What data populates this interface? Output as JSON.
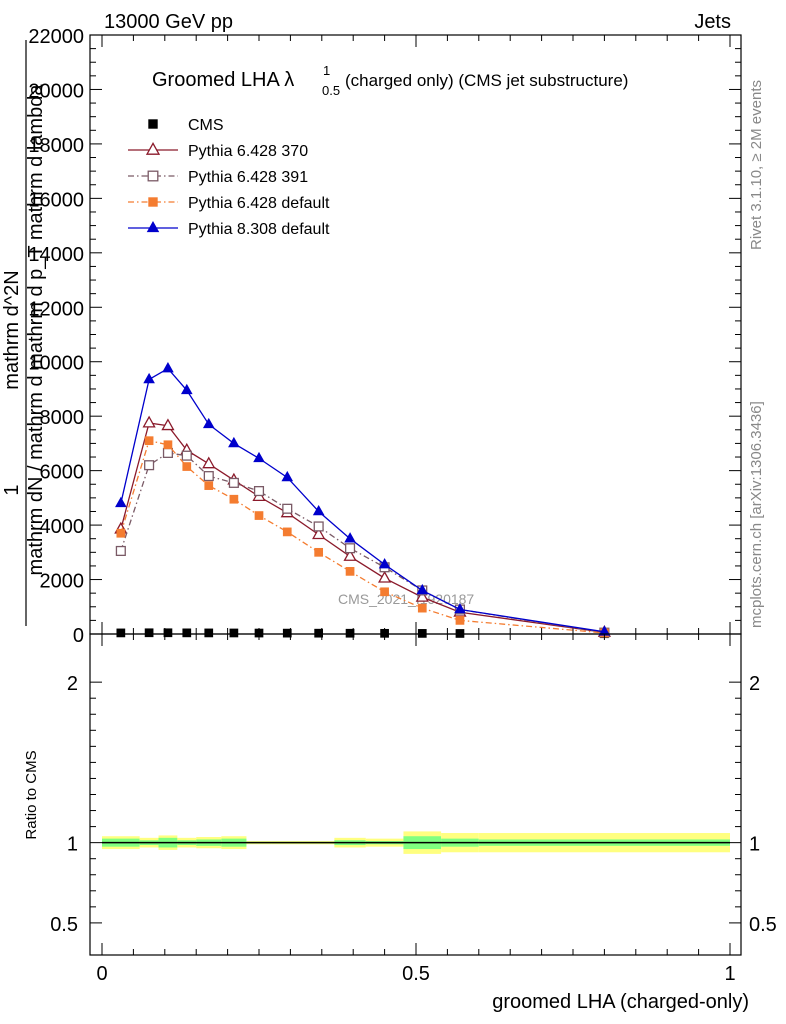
{
  "header": {
    "left": "13000 GeV pp",
    "right": "Jets"
  },
  "side_labels": {
    "rivet": "Rivet 3.1.10, ≥ 2M events",
    "mcplots": "mcplots.cern.ch [arXiv:1306.3436]"
  },
  "watermark": "CMS_2021_I1920187",
  "colors": {
    "cms": "#000000",
    "p370": "#8b1a2b",
    "p391": "#7a5a66",
    "p6def": "#f47c30",
    "p8": "#0000cc",
    "band_yellow": "#ffff80",
    "band_green": "#80ff80"
  },
  "chart_data": [
    {
      "type": "line",
      "title": "Groomed LHA λ",
      "title_superscript": "1",
      "title_subscript": "0.5",
      "title_suffix": " (charged only) (CMS jet substructure)",
      "ylabel_top": "1",
      "ylabel_parts": [
        "mathrm d N / mathrm d mathrm d p",
        "T",
        " mathrm d lambda"
      ],
      "ylabel_lines": [
        "mathrm dN / mathrm d mathrm d p_T mathrm d lambda",
        "mathrm d^2N"
      ],
      "xlim": [
        0,
        1
      ],
      "ylim": [
        0,
        22000
      ],
      "yticks": [
        0,
        2000,
        4000,
        6000,
        8000,
        10000,
        12000,
        14000,
        16000,
        18000,
        20000,
        22000
      ],
      "ytick_labels": [
        "0",
        "2000",
        "4000",
        "6000",
        "8000",
        "10000",
        "12000",
        "14000",
        "16000",
        "18000",
        "20000",
        "22000"
      ],
      "legend": "top-left",
      "series": [
        {
          "name": "CMS",
          "marker": "square-filled",
          "line": "none",
          "x": [
            0.03,
            0.075,
            0.105,
            0.135,
            0.17,
            0.21,
            0.25,
            0.295,
            0.345,
            0.395,
            0.45,
            0.51,
            0.57,
            0.8
          ],
          "values": [
            40,
            45,
            45,
            42,
            40,
            38,
            35,
            32,
            30,
            28,
            25,
            22,
            20,
            10
          ]
        },
        {
          "name": "Pythia 6.428 370",
          "marker": "triangle-open",
          "line": "solid",
          "x": [
            0.03,
            0.075,
            0.105,
            0.135,
            0.17,
            0.21,
            0.25,
            0.295,
            0.345,
            0.395,
            0.45,
            0.51,
            0.57,
            0.8
          ],
          "values": [
            3850,
            7750,
            7650,
            6750,
            6250,
            5650,
            5050,
            4450,
            3650,
            2850,
            2050,
            1350,
            800,
            60
          ]
        },
        {
          "name": "Pythia 6.428 391",
          "marker": "square-open",
          "line": "dash-dot",
          "x": [
            0.03,
            0.075,
            0.105,
            0.135,
            0.17,
            0.21,
            0.25,
            0.295,
            0.345,
            0.395,
            0.45,
            0.51,
            0.57,
            0.8
          ],
          "values": [
            3050,
            6200,
            6650,
            6550,
            5800,
            5550,
            5250,
            4600,
            3950,
            3150,
            2450,
            1600,
            900,
            50
          ]
        },
        {
          "name": "Pythia 6.428 default",
          "marker": "square-filled",
          "line": "dash-dot",
          "x": [
            0.03,
            0.075,
            0.105,
            0.135,
            0.17,
            0.21,
            0.25,
            0.295,
            0.345,
            0.395,
            0.45,
            0.51,
            0.57,
            0.8
          ],
          "values": [
            3700,
            7100,
            6950,
            6150,
            5450,
            4950,
            4350,
            3750,
            3000,
            2300,
            1550,
            950,
            500,
            40
          ]
        },
        {
          "name": "Pythia 8.308 default",
          "marker": "triangle-filled",
          "line": "solid",
          "x": [
            0.03,
            0.075,
            0.105,
            0.135,
            0.17,
            0.21,
            0.25,
            0.295,
            0.345,
            0.395,
            0.45,
            0.51,
            0.57,
            0.8
          ],
          "values": [
            4800,
            9350,
            9750,
            8950,
            7700,
            7000,
            6450,
            5750,
            4500,
            3500,
            2550,
            1600,
            900,
            80
          ]
        }
      ]
    },
    {
      "type": "line",
      "xlabel": "groomed LHA (charged-only)",
      "ylabel": "Ratio to CMS",
      "xlim": [
        0,
        1
      ],
      "ylim": [
        0.3,
        2.3
      ],
      "yticks": [
        0.5,
        1,
        2
      ],
      "ytick_labels": [
        "0.5",
        "1",
        "2"
      ],
      "xticks": [
        0,
        0.5,
        1
      ],
      "xtick_labels": [
        "0",
        "0.5",
        "1"
      ],
      "reference": 1,
      "bands": {
        "edges": [
          0,
          0.06,
          0.09,
          0.12,
          0.15,
          0.19,
          0.23,
          0.27,
          0.32,
          0.37,
          0.42,
          0.48,
          0.54,
          0.6,
          1.0
        ],
        "yellow_halfwidth": [
          0.04,
          0.03,
          0.045,
          0.03,
          0.035,
          0.04,
          0.01,
          0.01,
          0.01,
          0.03,
          0.025,
          0.07,
          0.06,
          0.06
        ],
        "green_halfwidth": [
          0.025,
          0.015,
          0.03,
          0.015,
          0.02,
          0.025,
          0.005,
          0.005,
          0.005,
          0.015,
          0.01,
          0.04,
          0.025,
          0.02
        ]
      }
    }
  ]
}
